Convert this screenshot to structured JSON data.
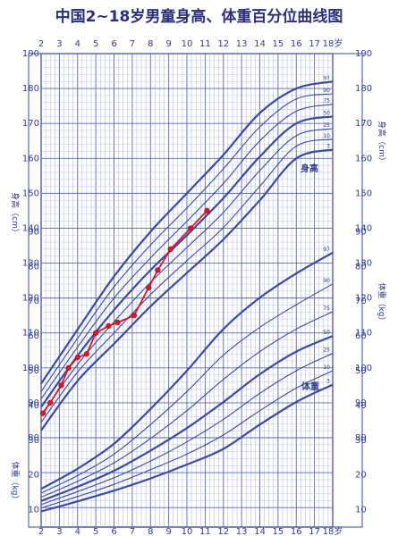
{
  "title": "中国2~18岁男童身高、体重百分位曲线图",
  "chart_data": {
    "type": "line",
    "title": "中国2~18岁男童身高、体重百分位曲线图",
    "x_axis": {
      "ticks": [
        2,
        3,
        4,
        5,
        6,
        7,
        8,
        9,
        10,
        11,
        12,
        13,
        14,
        15,
        16,
        17,
        18
      ],
      "last_label": "18岁",
      "range": [
        2,
        18
      ]
    },
    "height_axis": {
      "label": "身高（cm）",
      "ticks": [
        80,
        90,
        100,
        110,
        120,
        130,
        140,
        150,
        160,
        170,
        180,
        190
      ],
      "range": [
        80,
        190
      ]
    },
    "weight_axis": {
      "label": "体重（kg）",
      "ticks": [
        10,
        20,
        30,
        40,
        50,
        60,
        70,
        80,
        90
      ],
      "range": [
        5,
        95
      ]
    },
    "zone_labels": {
      "height": "身高",
      "weight": "体重"
    },
    "percentiles": [
      "3",
      "10",
      "25",
      "50",
      "75",
      "90",
      "97"
    ],
    "height_percentiles": {
      "ages": [
        2,
        4,
        6,
        8,
        10,
        12,
        14,
        16,
        18
      ],
      "series": [
        {
          "name": "3",
          "values": [
            82.1,
            96.3,
            106.9,
            117.6,
            127.2,
            136.8,
            148.0,
            160.0,
            162.5
          ]
        },
        {
          "name": "10",
          "values": [
            84.4,
            98.8,
            110.0,
            121.0,
            130.7,
            140.2,
            152.0,
            163.5,
            165.5
          ]
        },
        {
          "name": "25",
          "values": [
            86.5,
            101.0,
            113.2,
            124.5,
            134.5,
            144.5,
            156.5,
            166.5,
            168.5
          ]
        },
        {
          "name": "50",
          "values": [
            88.8,
            103.5,
            116.6,
            128.0,
            138.0,
            148.6,
            160.5,
            170.0,
            172.0
          ]
        },
        {
          "name": "75",
          "values": [
            91.1,
            106.0,
            120.0,
            131.5,
            142.0,
            152.8,
            165.0,
            173.5,
            175.5
          ]
        },
        {
          "name": "90",
          "values": [
            93.2,
            108.5,
            123.2,
            135.2,
            145.8,
            157.0,
            169.0,
            177.0,
            178.5
          ]
        },
        {
          "name": "97",
          "values": [
            95.5,
            111.0,
            126.2,
            139.0,
            150.0,
            161.0,
            173.0,
            180.0,
            182.0
          ]
        }
      ]
    },
    "weight_percentiles": {
      "ages": [
        2,
        4,
        6,
        8,
        10,
        12,
        14,
        16,
        18
      ],
      "series": [
        {
          "name": "3",
          "values": [
            9.5,
            12.4,
            15.5,
            19.0,
            23.0,
            27.5,
            34.5,
            41.0,
            46.0
          ]
        },
        {
          "name": "10",
          "values": [
            10.5,
            13.8,
            17.3,
            21.5,
            26.0,
            31.5,
            38.5,
            45.0,
            50.0
          ]
        },
        {
          "name": "25",
          "values": [
            11.5,
            15.2,
            19.2,
            24.0,
            29.5,
            36.0,
            43.5,
            50.0,
            55.0
          ]
        },
        {
          "name": "50",
          "values": [
            12.5,
            16.6,
            21.2,
            27.0,
            33.5,
            41.0,
            49.0,
            55.5,
            60.0
          ]
        },
        {
          "name": "75",
          "values": [
            13.6,
            18.2,
            23.5,
            30.5,
            38.5,
            47.5,
            55.5,
            62.0,
            67.0
          ]
        },
        {
          "name": "90",
          "values": [
            14.8,
            19.8,
            26.0,
            34.5,
            44.0,
            54.5,
            62.5,
            69.0,
            75.0
          ]
        },
        {
          "name": "97",
          "values": [
            16.0,
            21.8,
            29.0,
            39.0,
            50.0,
            62.0,
            71.0,
            78.0,
            84.0
          ]
        }
      ]
    },
    "child_height_measurements": {
      "x": [
        2.1,
        2.5,
        3.1,
        3.5,
        4.0,
        4.5,
        5.0,
        5.7,
        6.2,
        7.1,
        7.9,
        8.4,
        9.1,
        10.2,
        11.1
      ],
      "y": [
        87,
        90,
        95,
        100,
        103,
        104,
        110,
        112,
        113,
        115,
        123,
        128,
        134,
        140,
        145
      ]
    }
  }
}
